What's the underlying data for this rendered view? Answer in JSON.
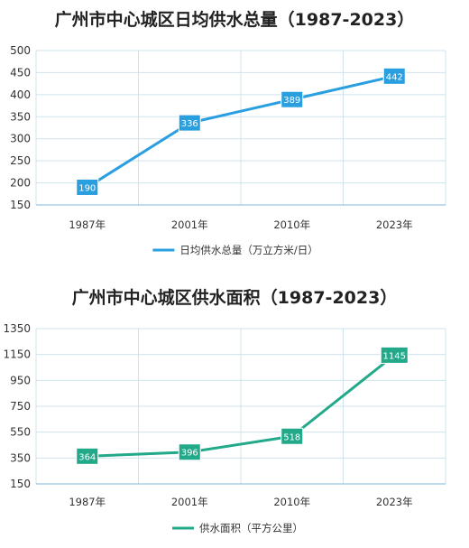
{
  "chart_data": [
    {
      "type": "line",
      "title": "广州市中心城区日均供水总量（1987-2023）",
      "categories": [
        "1987年",
        "2001年",
        "2010年",
        "2023年"
      ],
      "series": [
        {
          "name": "日均供水总量（万立方米/日）",
          "values": [
            190,
            336,
            389,
            442
          ]
        }
      ],
      "data_labels": [
        "190",
        "336",
        "389",
        "442"
      ],
      "yticks": [
        "500",
        "450",
        "400",
        "350",
        "300",
        "250",
        "200",
        "150"
      ],
      "ylim": [
        150,
        500
      ],
      "grid": true,
      "legend_position": "bottom",
      "color": "#2a9fe0"
    },
    {
      "type": "line",
      "title": "广州市中心城区供水面积（1987-2023）",
      "categories": [
        "1987年",
        "2001年",
        "2010年",
        "2023年"
      ],
      "series": [
        {
          "name": "供水面积（平方公里）",
          "values": [
            364,
            396,
            518,
            1145
          ]
        }
      ],
      "data_labels": [
        "364",
        "396",
        "518",
        "1145"
      ],
      "yticks": [
        "1350",
        "1150",
        "950",
        "750",
        "550",
        "350",
        "150"
      ],
      "ylim": [
        150,
        1350
      ],
      "grid": true,
      "legend_position": "bottom",
      "color": "#22a98a"
    }
  ]
}
